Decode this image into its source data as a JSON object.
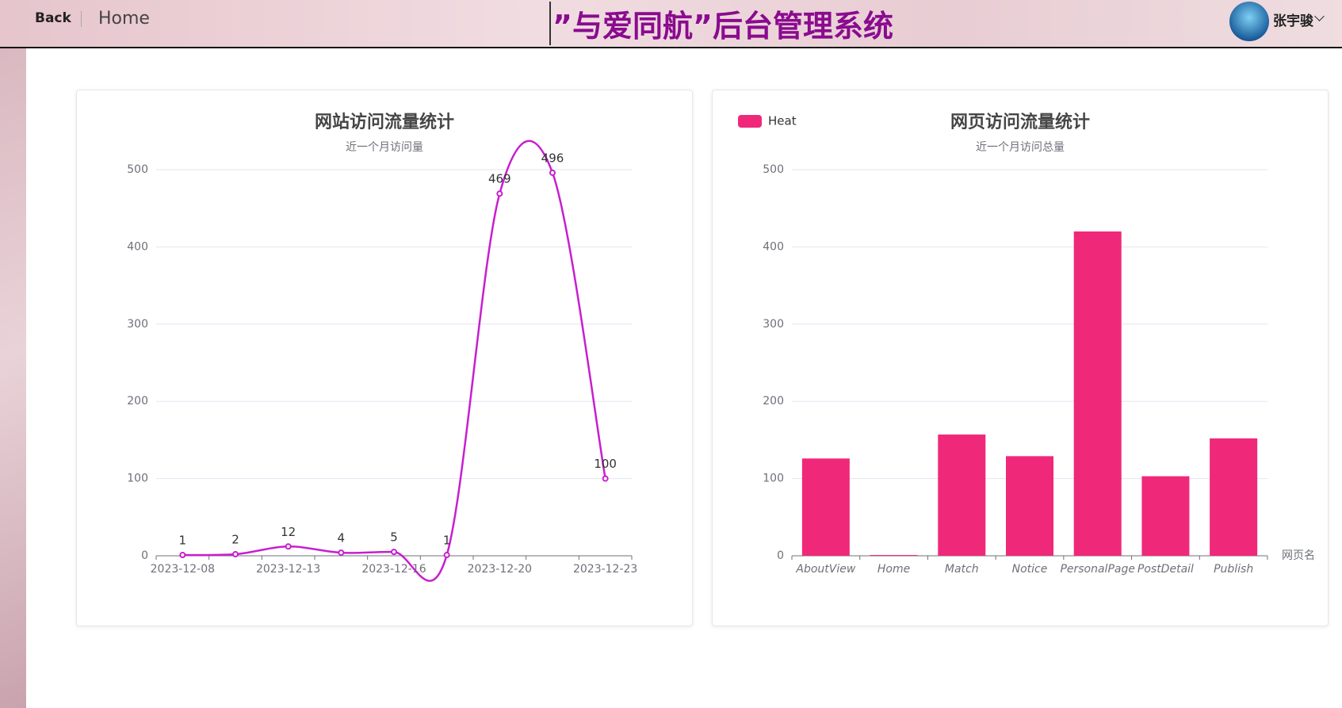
{
  "header": {
    "back": "Back",
    "home": "Home",
    "title": "”与爱同航”后台管理系统",
    "user": "张宇骏"
  },
  "chart_data": [
    {
      "type": "line",
      "title": "网站访问流量统计",
      "subtitle": "近一个月访问量",
      "categories": [
        "2023-12-08",
        null,
        "2023-12-13",
        null,
        "2023-12-16",
        null,
        "2023-12-20",
        null,
        "2023-12-23"
      ],
      "values": [
        1,
        2,
        12,
        4,
        5,
        1,
        469,
        496,
        100
      ],
      "color": "#c81ed0",
      "ylim": [
        0,
        500
      ],
      "yticks": [
        0,
        100,
        200,
        300,
        400,
        500
      ],
      "grid": true
    },
    {
      "type": "bar",
      "title": "网页访问流量统计",
      "subtitle": "近一个月访问总量",
      "xlabel": "网页名",
      "categories": [
        "AboutView",
        "Home",
        "Match",
        "Notice",
        "PersonalPage",
        "PostDetail",
        "Publish"
      ],
      "series": [
        {
          "name": "Heat",
          "color": "#f0287a",
          "values": [
            126,
            1,
            157,
            129,
            420,
            103,
            152
          ]
        }
      ],
      "legend": "top-left",
      "ylim": [
        0,
        500
      ],
      "yticks": [
        0,
        100,
        200,
        300,
        400,
        500
      ],
      "grid": true
    }
  ]
}
